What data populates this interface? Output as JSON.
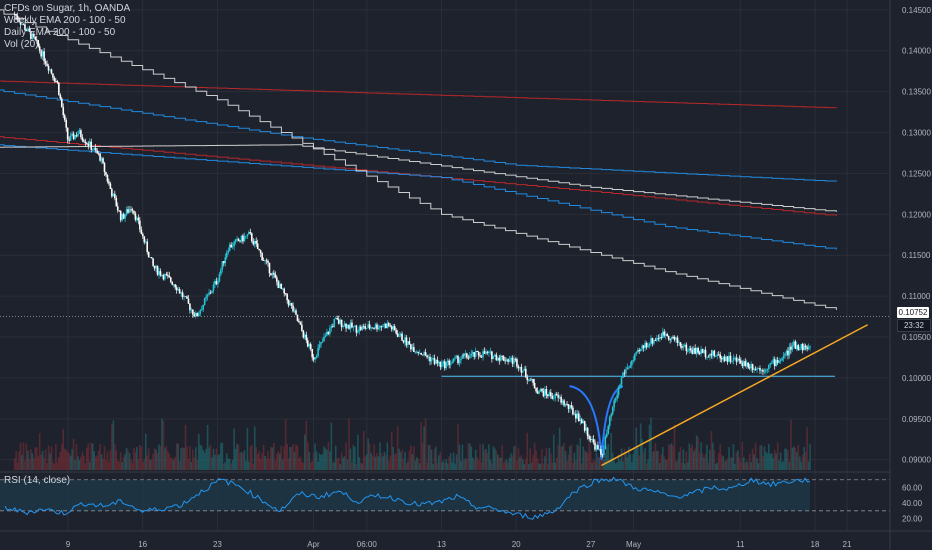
{
  "legend": {
    "symbol": "CFDs on Sugar, 1h, OANDA",
    "weekly_ema": "Weekly EMA 200 - 100 - 50",
    "daily_ema": "Daily EMA 200 - 100 - 50",
    "volume": "Vol (20)",
    "rsi": "RSI (14, close)"
  },
  "price_tags": {
    "last_price": "0.10752",
    "countdown": "23:32"
  },
  "colors": {
    "background": "#1e222d",
    "up_candle": "#26c6da",
    "down_candle": "#ffffff",
    "weekly_ema": "#c62828",
    "daily_ema_blue": "#2196f3",
    "daily_ema_white": "#e0e0e0",
    "support_line": "#4fc3f7",
    "trendline": "#f5a623",
    "rsi_line": "#2196f3",
    "rsi_band": "#1c3a4a"
  },
  "chart_data": {
    "type": "candlestick",
    "title": "CFDs on Sugar, 1h, OANDA",
    "x_ticks": [
      "9",
      "16",
      "23",
      "Apr",
      "06:00",
      "13",
      "20",
      "27",
      "May",
      "11",
      "18",
      "21"
    ],
    "y_ticks": [
      "0.14500",
      "0.14000",
      "0.13500",
      "0.13000",
      "0.12500",
      "0.12000",
      "0.11500",
      "0.11000",
      "0.10500",
      "0.10000",
      "0.09500",
      "0.09000"
    ],
    "ylim": [
      0.0885,
      0.1462
    ],
    "last_price": 0.10752,
    "price_path": [
      {
        "date": "Mar 4",
        "close": 0.1445
      },
      {
        "date": "Mar 6",
        "close": 0.141
      },
      {
        "date": "Mar 8",
        "close": 0.136
      },
      {
        "date": "Mar 9",
        "close": 0.129
      },
      {
        "date": "Mar 10",
        "close": 0.13
      },
      {
        "date": "Mar 12",
        "close": 0.127
      },
      {
        "date": "Mar 13",
        "close": 0.123
      },
      {
        "date": "Mar 14",
        "close": 0.1195
      },
      {
        "date": "Mar 15",
        "close": 0.121
      },
      {
        "date": "Mar 17",
        "close": 0.1135
      },
      {
        "date": "Mar 19",
        "close": 0.1115
      },
      {
        "date": "Mar 21",
        "close": 0.1075
      },
      {
        "date": "Mar 23",
        "close": 0.112
      },
      {
        "date": "Mar 24",
        "close": 0.116
      },
      {
        "date": "Mar 26",
        "close": 0.1175
      },
      {
        "date": "Mar 28",
        "close": 0.113
      },
      {
        "date": "Mar 30",
        "close": 0.1085
      },
      {
        "date": "Apr 1",
        "close": 0.1025
      },
      {
        "date": "Apr 3",
        "close": 0.107
      },
      {
        "date": "Apr 5",
        "close": 0.106
      },
      {
        "date": "Apr 8",
        "close": 0.1065
      },
      {
        "date": "Apr 10",
        "close": 0.104
      },
      {
        "date": "Apr 13",
        "close": 0.1015
      },
      {
        "date": "Apr 15",
        "close": 0.1025
      },
      {
        "date": "Apr 17",
        "close": 0.103
      },
      {
        "date": "Apr 20",
        "close": 0.102
      },
      {
        "date": "Apr 22",
        "close": 0.0985
      },
      {
        "date": "Apr 24",
        "close": 0.0975
      },
      {
        "date": "Apr 26",
        "close": 0.095
      },
      {
        "date": "Apr 27",
        "close": 0.0925
      },
      {
        "date": "Apr 28",
        "close": 0.0905
      },
      {
        "date": "Apr 29",
        "close": 0.096
      },
      {
        "date": "Apr 30",
        "close": 0.1005
      },
      {
        "date": "May 2",
        "close": 0.104
      },
      {
        "date": "May 4",
        "close": 0.1055
      },
      {
        "date": "May 6",
        "close": 0.1035
      },
      {
        "date": "May 8",
        "close": 0.103
      },
      {
        "date": "May 11",
        "close": 0.102
      },
      {
        "date": "May 13",
        "close": 0.101
      },
      {
        "date": "May 15",
        "close": 0.1025
      },
      {
        "date": "May 16",
        "close": 0.104
      },
      {
        "date": "May 18",
        "close": 0.1035
      },
      {
        "date": "May 19",
        "close": 0.106
      },
      {
        "date": "May 20",
        "close": 0.1075
      }
    ],
    "series": [
      {
        "name": "Weekly EMA 200",
        "color": "#c62828",
        "points": [
          {
            "date": "Mar 2",
            "value": 0.1363
          },
          {
            "date": "May 20",
            "value": 0.133
          }
        ]
      },
      {
        "name": "Weekly EMA 100",
        "color": "#c62828",
        "points": [
          {
            "date": "Mar 2",
            "value": 0.1295
          },
          {
            "date": "Apr 27",
            "value": 0.1228
          },
          {
            "date": "May 20",
            "value": 0.1198
          }
        ]
      },
      {
        "name": "Daily EMA 200",
        "color": "#2196f3",
        "points": [
          {
            "date": "Mar 2",
            "value": 0.1352
          },
          {
            "date": "Mar 30",
            "value": 0.1295
          },
          {
            "date": "Apr 20",
            "value": 0.126
          },
          {
            "date": "May 20",
            "value": 0.124
          }
        ]
      },
      {
        "name": "Daily EMA 100",
        "color": "#2196f3",
        "points": [
          {
            "date": "Mar 2",
            "value": 0.1285
          },
          {
            "date": "Apr 13",
            "value": 0.1245
          },
          {
            "date": "May 4",
            "value": 0.1185
          },
          {
            "date": "May 20",
            "value": 0.1157
          }
        ]
      },
      {
        "name": "Daily EMA 50",
        "color": "#e0e0e0",
        "points": [
          {
            "date": "Mar 2",
            "value": 0.145
          },
          {
            "date": "Mar 23",
            "value": 0.134
          },
          {
            "date": "Apr 13",
            "value": 0.12
          },
          {
            "date": "May 4",
            "value": 0.113
          },
          {
            "date": "May 20",
            "value": 0.1083
          }
        ]
      },
      {
        "name": "Weekly EMA 50",
        "color": "#e0e0e0",
        "points": [
          {
            "date": "Mar 2",
            "value": 0.1282
          },
          {
            "date": "Mar 30",
            "value": 0.1285
          },
          {
            "date": "Apr 27",
            "value": 0.1233
          },
          {
            "date": "May 20",
            "value": 0.1203
          }
        ]
      }
    ],
    "annotations": {
      "support_level": 0.1002,
      "support_from": "Apr 13",
      "support_to": "May 18",
      "trendline": [
        {
          "date": "Apr 28",
          "value": 0.0893
        },
        {
          "date": "May 22",
          "value": 0.1065
        }
      ],
      "rounded_bottom": {
        "from": "Apr 25",
        "low": "Apr 28",
        "to": "Apr 30",
        "low_value": 0.09
      }
    },
    "rsi": {
      "ticks": [
        "60.00",
        "40.00",
        "20.00"
      ],
      "ylim": [
        4,
        80
      ],
      "upper_band": 70,
      "lower_band": 30,
      "values": [
        34,
        28,
        32,
        27,
        40,
        36,
        42,
        29,
        33,
        38,
        55,
        70,
        61,
        45,
        30,
        52,
        48,
        55,
        42,
        50,
        45,
        38,
        40,
        48,
        35,
        32,
        25,
        22,
        30,
        55,
        68,
        72,
        60,
        55,
        48,
        52,
        60,
        58,
        70,
        64,
        68,
        70
      ]
    }
  }
}
